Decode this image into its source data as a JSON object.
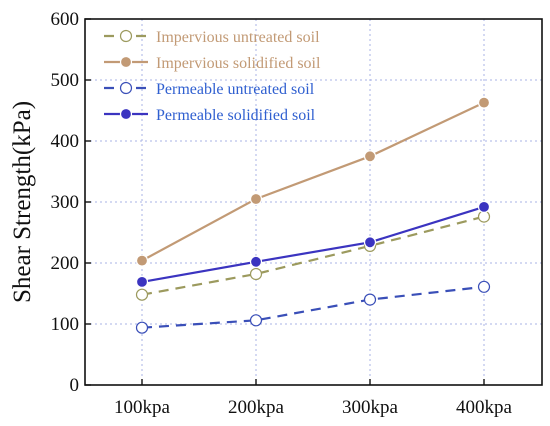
{
  "chart_data": {
    "type": "line",
    "title": "",
    "xlabel": "",
    "ylabel": "Shear Strength(kPa)",
    "categories": [
      "100kpa",
      "200kpa",
      "300kpa",
      "400kpa"
    ],
    "ylim": [
      0,
      600
    ],
    "yticks": [
      0,
      100,
      200,
      300,
      400,
      500,
      600
    ],
    "grid": true,
    "legend_position": "top-left",
    "series": [
      {
        "name": "Impervious untreated soil",
        "values": [
          148,
          182,
          228,
          276
        ],
        "color": "#9c9a5e",
        "label_color": "#c29a75",
        "line_style": "dashed",
        "marker": "open-circle"
      },
      {
        "name": "Impervious solidified soil",
        "values": [
          204,
          305,
          375,
          463
        ],
        "color": "#c29a75",
        "label_color": "#c29a75",
        "line_style": "solid",
        "marker": "filled-circle"
      },
      {
        "name": "Permeable untreated soil",
        "values": [
          94,
          106,
          140,
          161
        ],
        "color": "#3a4fb8",
        "label_color": "#2f5fd0",
        "line_style": "dashed",
        "marker": "open-circle"
      },
      {
        "name": "Permeable solidified soil",
        "values": [
          169,
          202,
          234,
          292
        ],
        "color": "#3b34c0",
        "label_color": "#2f5fd0",
        "line_style": "solid",
        "marker": "filled-circle"
      }
    ]
  }
}
